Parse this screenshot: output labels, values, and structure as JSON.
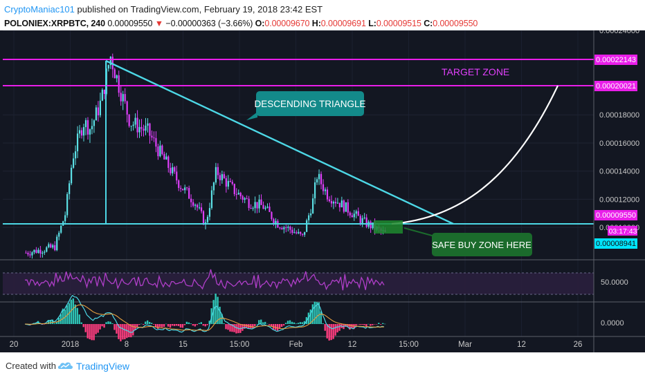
{
  "header": {
    "author": "CryptoManiac101",
    "published_text": " published on TradingView.com, February 19, 2018 23:42 EST",
    "symbol": "POLONIEX:XRPBTC, 240",
    "last_price": "0.00009550",
    "change": "−0.00000363 (−3.66%)",
    "o_label": "O:",
    "o_value": "0.00009670",
    "h_label": "H:",
    "h_value": "0.00009691",
    "l_label": "L:",
    "l_value": "0.00009515",
    "c_label": "C:",
    "c_value": "0.00009550"
  },
  "footer": {
    "created_with": "Created with",
    "brand": "TradingView"
  },
  "colors": {
    "background": "#131722",
    "up": "#5ce1e6",
    "down": "#e040fb",
    "magenta_line": "#e91ee9",
    "cyan_line": "#4dd8e6",
    "curve": "#ffffff",
    "callout_teal": "#138a8a",
    "callout_green": "#1b6b2c",
    "rsi": "#b03fc9"
  },
  "annotations": {
    "target_zone": "TARGET ZONE",
    "descending_triangle": "DESCENDING TRIANGLE",
    "safe_buy_zone": "SAFE BUY ZONE HERE"
  },
  "chart_data": {
    "type": "candlestick",
    "symbol": "POLONIEX:XRPBTC",
    "interval": "240",
    "x_ticks": [
      "20",
      "2018",
      "8",
      "15",
      "15:00",
      "Feb",
      "12",
      "15:00",
      "Mar",
      "12",
      "26"
    ],
    "y_ticks": [
      "0.00024000",
      "0.00022143",
      "0.00020021",
      "0.00018000",
      "0.00016000",
      "0.00014000",
      "0.00012000",
      "0.00010000",
      "0.00009550",
      "0.00008941"
    ],
    "ylim": [
      7.7e-05,
      0.00024
    ],
    "price_labels": {
      "resistance_high": "0.00022143",
      "target": "0.00020021",
      "last": "0.00009550",
      "support": "0.00008941",
      "countdown": "03:17:43"
    },
    "horizontal_lines": [
      {
        "price": 0.00022143,
        "color": "#e91ee9"
      },
      {
        "price": 0.00020021,
        "color": "#e91ee9"
      },
      {
        "price": 8.941e-05,
        "color": "#4dd8e6"
      }
    ],
    "price_path_approx": [
      {
        "t": 0,
        "p": 8.2e-05
      },
      {
        "t": 0.04,
        "p": 8.4e-05
      },
      {
        "t": 0.08,
        "p": 8.6e-05
      },
      {
        "t": 0.11,
        "p": 0.00011
      },
      {
        "t": 0.13,
        "p": 0.00015
      },
      {
        "t": 0.16,
        "p": 0.000175
      },
      {
        "t": 0.18,
        "p": 0.00017
      },
      {
        "t": 0.21,
        "p": 0.00019
      },
      {
        "t": 0.235,
        "p": 0.000222
      },
      {
        "t": 0.26,
        "p": 0.0002
      },
      {
        "t": 0.29,
        "p": 0.000175
      },
      {
        "t": 0.34,
        "p": 0.000168
      },
      {
        "t": 0.38,
        "p": 0.00015
      },
      {
        "t": 0.43,
        "p": 0.00013
      },
      {
        "t": 0.47,
        "p": 0.000118
      },
      {
        "t": 0.5,
        "p": 0.000102
      },
      {
        "t": 0.53,
        "p": 0.00014
      },
      {
        "t": 0.58,
        "p": 0.000126
      },
      {
        "t": 0.62,
        "p": 0.000118
      },
      {
        "t": 0.66,
        "p": 0.000115
      },
      {
        "t": 0.7,
        "p": 0.000103
      },
      {
        "t": 0.74,
        "p": 9.8e-05
      },
      {
        "t": 0.77,
        "p": 9.3e-05
      },
      {
        "t": 0.8,
        "p": 0.00012
      },
      {
        "t": 0.81,
        "p": 0.000137
      },
      {
        "t": 0.84,
        "p": 0.000123
      },
      {
        "t": 0.87,
        "p": 0.000118
      },
      {
        "t": 0.9,
        "p": 0.000112
      },
      {
        "t": 0.94,
        "p": 0.000104
      },
      {
        "t": 1.0,
        "p": 9.55e-05
      }
    ],
    "rsi_level_label": "50.0000",
    "macd_level_label": "0.0000"
  }
}
